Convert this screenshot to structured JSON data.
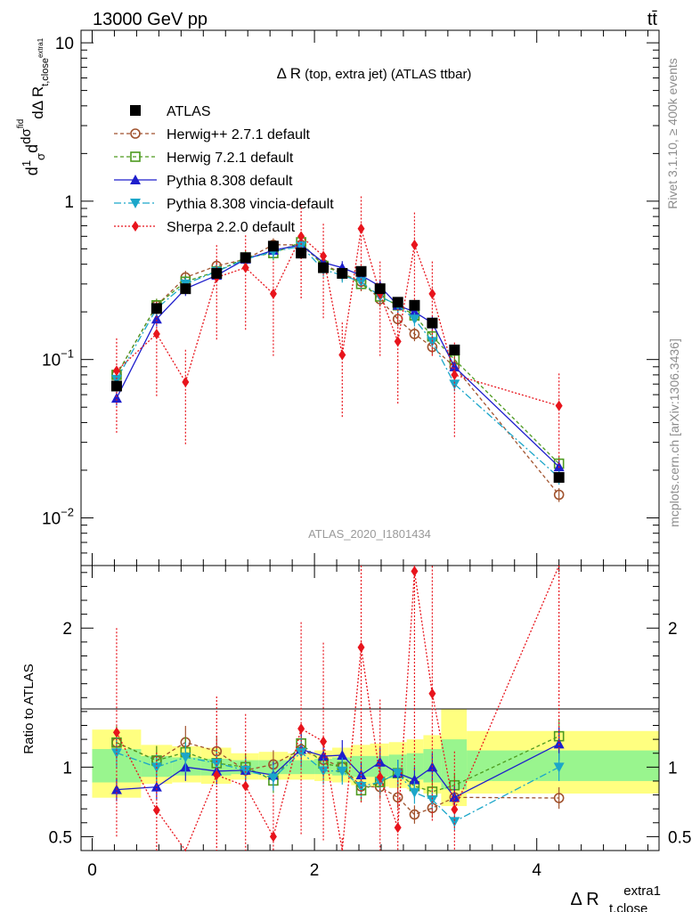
{
  "header": {
    "left": "13000 GeV pp",
    "right": "tt̄"
  },
  "side_labels": {
    "rivet": "Rivet 3.1.10, ≥ 400k events",
    "mcplots": "mcplots.cern.ch [arXiv:1306.3436]"
  },
  "watermark": "ATLAS_2020_I1801434",
  "chart_data": [
    {
      "type": "scatter",
      "panel": "main",
      "title": "Δ R (top, extra jet) (ATLAS ttbar)",
      "ylabel": "dσ/dΔR t,close extra1 (normalized, 1/σ)",
      "ylabel_parts": {
        "pre": "d",
        "frac_num": "1",
        "frac_den": "σ",
        "d": "d",
        "dsig": "dσ",
        "sup": "fid",
        "den": "dΔ R",
        "sub": "t,close",
        "subsup": "extra1"
      },
      "yscale": "log",
      "ylim": [
        0.005,
        12
      ],
      "xlim": [
        -0.1,
        5.1
      ],
      "yticks": [
        {
          "v": 0.01,
          "m": "10",
          "e": "−2"
        },
        {
          "v": 0.1,
          "m": "10",
          "e": "−1"
        },
        {
          "v": 1,
          "m": "1",
          "e": ""
        },
        {
          "v": 10,
          "m": "10",
          "e": ""
        }
      ],
      "legend_position": "top-left",
      "x": [
        0.22,
        0.58,
        0.84,
        1.12,
        1.38,
        1.63,
        1.88,
        2.08,
        2.25,
        2.42,
        2.59,
        2.75,
        2.9,
        3.06,
        3.26,
        4.2
      ],
      "series": [
        {
          "name": "ATLAS",
          "style": "data",
          "color": "#000000",
          "marker": "square-filled",
          "dash": "",
          "values": [
            0.068,
            0.21,
            0.28,
            0.35,
            0.44,
            0.52,
            0.47,
            0.38,
            0.35,
            0.36,
            0.28,
            0.23,
            0.22,
            0.17,
            0.115,
            0.018
          ]
        },
        {
          "name": "Herwig++ 2.7.1 default",
          "style": "mc",
          "color": "#a0522d",
          "marker": "circle-open",
          "dash": "4,3",
          "values": [
            0.08,
            0.22,
            0.33,
            0.39,
            0.43,
            0.53,
            0.53,
            0.4,
            0.35,
            0.31,
            0.24,
            0.18,
            0.145,
            0.12,
            0.09,
            0.014
          ]
        },
        {
          "name": "Herwig 7.2.1 default",
          "style": "mc",
          "color": "#4d9a1f",
          "marker": "square-open",
          "dash": "4,3",
          "values": [
            0.08,
            0.22,
            0.31,
            0.36,
            0.44,
            0.47,
            0.55,
            0.39,
            0.35,
            0.3,
            0.25,
            0.22,
            0.19,
            0.14,
            0.1,
            0.022
          ]
        },
        {
          "name": "Pythia 8.308 default",
          "style": "mc",
          "color": "#1e1ecc",
          "marker": "triangle-up",
          "dash": "",
          "values": [
            0.057,
            0.18,
            0.28,
            0.34,
            0.43,
            0.49,
            0.53,
            0.41,
            0.38,
            0.34,
            0.29,
            0.22,
            0.2,
            0.17,
            0.09,
            0.021
          ]
        },
        {
          "name": "Pythia 8.308 vincia-default",
          "style": "mc",
          "color": "#1ba6c9",
          "marker": "triangle-down",
          "dash": "8,3,2,3",
          "values": [
            0.075,
            0.21,
            0.3,
            0.36,
            0.43,
            0.48,
            0.52,
            0.37,
            0.34,
            0.31,
            0.25,
            0.22,
            0.18,
            0.13,
            0.07,
            0.018
          ]
        },
        {
          "name": "Sherpa 2.2.0 default",
          "style": "mc",
          "color": "#e8141c",
          "marker": "diamond",
          "dash": "2,2",
          "values": [
            0.085,
            0.145,
            0.072,
            0.33,
            0.38,
            0.26,
            0.6,
            0.45,
            0.107,
            0.67,
            0.26,
            0.13,
            0.53,
            0.26,
            0.08,
            0.051
          ]
        }
      ]
    },
    {
      "type": "scatter",
      "panel": "ratio",
      "ylabel": "Ratio to ATLAS",
      "xlabel_main": "Δ R",
      "xlabel_sup": "extra1",
      "xlabel_sub": "t,close",
      "ylim": [
        0.4,
        2.45
      ],
      "yticks": [
        0.5,
        1,
        2
      ],
      "xticks": [
        0,
        2,
        4
      ],
      "reference_line": 1,
      "band_edges": [
        0,
        0.44,
        0.44,
        0.72,
        0.72,
        0.98,
        0.98,
        1.25,
        1.25,
        1.5,
        1.5,
        1.76,
        1.76,
        2.0,
        2.0,
        2.16,
        2.16,
        2.33,
        2.33,
        2.5,
        2.5,
        2.67,
        2.67,
        2.83,
        2.83,
        2.98,
        2.98,
        3.14,
        3.14,
        3.37,
        3.37,
        5.1
      ],
      "bands": [
        {
          "x0": 0.0,
          "x1": 0.44,
          "inner": [
            0.89,
            1.13
          ],
          "outer": [
            0.78,
            1.27
          ]
        },
        {
          "x0": 0.44,
          "x1": 0.72,
          "inner": [
            0.93,
            1.08
          ],
          "outer": [
            0.88,
            1.16
          ]
        },
        {
          "x0": 0.72,
          "x1": 0.98,
          "inner": [
            0.94,
            1.07
          ],
          "outer": [
            0.89,
            1.15
          ]
        },
        {
          "x0": 0.98,
          "x1": 1.25,
          "inner": [
            0.94,
            1.06
          ],
          "outer": [
            0.88,
            1.14
          ]
        },
        {
          "x0": 1.25,
          "x1": 1.5,
          "inner": [
            0.95,
            1.05
          ],
          "outer": [
            0.91,
            1.1
          ]
        },
        {
          "x0": 1.5,
          "x1": 1.76,
          "inner": [
            0.95,
            1.05
          ],
          "outer": [
            0.91,
            1.11
          ]
        },
        {
          "x0": 1.76,
          "x1": 2.0,
          "inner": [
            0.95,
            1.05
          ],
          "outer": [
            0.91,
            1.1
          ]
        },
        {
          "x0": 2.0,
          "x1": 2.16,
          "inner": [
            0.95,
            1.06
          ],
          "outer": [
            0.9,
            1.12
          ]
        },
        {
          "x0": 2.16,
          "x1": 2.33,
          "inner": [
            0.94,
            1.07
          ],
          "outer": [
            0.89,
            1.14
          ]
        },
        {
          "x0": 2.33,
          "x1": 2.5,
          "inner": [
            0.93,
            1.08
          ],
          "outer": [
            0.87,
            1.16
          ]
        },
        {
          "x0": 2.5,
          "x1": 2.67,
          "inner": [
            0.93,
            1.08
          ],
          "outer": [
            0.86,
            1.17
          ]
        },
        {
          "x0": 2.67,
          "x1": 2.83,
          "inner": [
            0.92,
            1.09
          ],
          "outer": [
            0.85,
            1.18
          ]
        },
        {
          "x0": 2.83,
          "x1": 2.98,
          "inner": [
            0.91,
            1.1
          ],
          "outer": [
            0.84,
            1.2
          ]
        },
        {
          "x0": 2.98,
          "x1": 3.14,
          "inner": [
            0.89,
            1.13
          ],
          "outer": [
            0.81,
            1.23
          ]
        },
        {
          "x0": 3.14,
          "x1": 3.37,
          "inner": [
            0.84,
            1.2
          ],
          "outer": [
            0.72,
            1.42
          ]
        },
        {
          "x0": 3.37,
          "x1": 5.1,
          "inner": [
            0.9,
            1.12
          ],
          "outer": [
            0.81,
            1.26
          ]
        }
      ]
    }
  ]
}
